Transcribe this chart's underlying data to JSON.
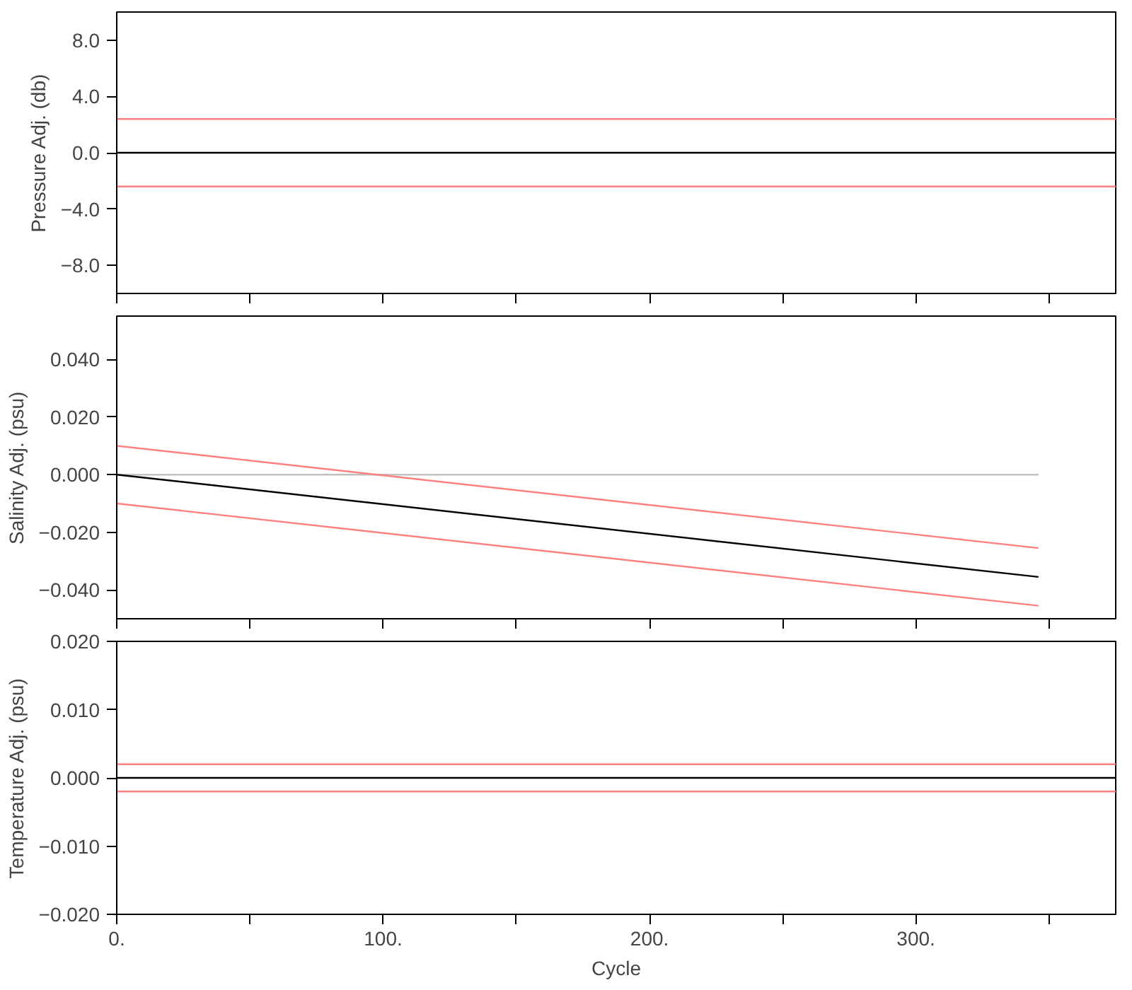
{
  "chart_data": [
    {
      "type": "line",
      "ylabel": "Pressure Adj. (db)",
      "xlim": [
        0,
        375
      ],
      "ylim": [
        -10,
        10
      ],
      "xticks": [
        {
          "value": 0,
          "label": null
        },
        {
          "value": 50,
          "label": null
        },
        {
          "value": 100,
          "label": null
        },
        {
          "value": 150,
          "label": null
        },
        {
          "value": 200,
          "label": null
        },
        {
          "value": 250,
          "label": null
        },
        {
          "value": 300,
          "label": null
        },
        {
          "value": 350,
          "label": null
        }
      ],
      "yticks": [
        {
          "value": -8,
          "label": "−8.0"
        },
        {
          "value": -4,
          "label": "−4.0"
        },
        {
          "value": 0,
          "label": "0.0"
        },
        {
          "value": 4,
          "label": "4.0"
        },
        {
          "value": 8,
          "label": "8.0"
        }
      ],
      "tick_labels": "y",
      "grid": false,
      "series": [
        {
          "color": "#ff8080",
          "x": [
            0,
            375
          ],
          "values": [
            2.4,
            2.4
          ]
        },
        {
          "color": "#ff8080",
          "x": [
            0,
            375
          ],
          "values": [
            -2.4,
            -2.4
          ]
        },
        {
          "color": "#000000",
          "x": [
            0,
            375
          ],
          "values": [
            0,
            0
          ]
        }
      ]
    },
    {
      "type": "line",
      "ylabel": "Salinity Adj. (psu)",
      "xlim": [
        0,
        375
      ],
      "ylim": [
        -0.05,
        0.055
      ],
      "xticks": [
        {
          "value": 0,
          "label": null
        },
        {
          "value": 50,
          "label": null
        },
        {
          "value": 100,
          "label": null
        },
        {
          "value": 150,
          "label": null
        },
        {
          "value": 200,
          "label": null
        },
        {
          "value": 250,
          "label": null
        },
        {
          "value": 300,
          "label": null
        },
        {
          "value": 350,
          "label": null
        }
      ],
      "yticks": [
        {
          "value": -0.04,
          "label": "−0.040"
        },
        {
          "value": -0.02,
          "label": "−0.020"
        },
        {
          "value": 0,
          "label": "0.000"
        },
        {
          "value": 0.02,
          "label": "0.020"
        },
        {
          "value": 0.04,
          "label": "0.040"
        }
      ],
      "tick_labels": "y",
      "grid": false,
      "series": [
        {
          "color": "#c0c0c0",
          "x": [
            0,
            346
          ],
          "values": [
            0,
            0
          ]
        },
        {
          "color": "#ff8080",
          "x": [
            0,
            346
          ],
          "values": [
            0.01,
            -0.0255
          ]
        },
        {
          "color": "#ff8080",
          "x": [
            0,
            346
          ],
          "values": [
            -0.01,
            -0.0455
          ]
        },
        {
          "color": "#000000",
          "x": [
            0,
            346
          ],
          "values": [
            0,
            -0.0355
          ]
        }
      ]
    },
    {
      "type": "line",
      "xlabel": "Cycle",
      "ylabel": "Temperature Adj. (psu)",
      "xlim": [
        0,
        375
      ],
      "ylim": [
        -0.02,
        0.02
      ],
      "xticks": [
        {
          "value": 0,
          "label": "0."
        },
        {
          "value": 50,
          "label": null
        },
        {
          "value": 100,
          "label": "100."
        },
        {
          "value": 150,
          "label": null
        },
        {
          "value": 200,
          "label": "200."
        },
        {
          "value": 250,
          "label": null
        },
        {
          "value": 300,
          "label": "300."
        },
        {
          "value": 350,
          "label": null
        }
      ],
      "yticks": [
        {
          "value": -0.02,
          "label": "−0.020"
        },
        {
          "value": -0.01,
          "label": "−0.010"
        },
        {
          "value": 0,
          "label": "0.000"
        },
        {
          "value": 0.01,
          "label": "0.010"
        },
        {
          "value": 0.02,
          "label": "0.020"
        }
      ],
      "grid": false,
      "series": [
        {
          "color": "#ff8080",
          "x": [
            0,
            375
          ],
          "values": [
            0.002,
            0.002
          ]
        },
        {
          "color": "#ff8080",
          "x": [
            0,
            375
          ],
          "values": [
            -0.002,
            -0.002
          ]
        },
        {
          "color": "#000000",
          "x": [
            0,
            375
          ],
          "values": [
            0,
            0
          ]
        }
      ]
    }
  ]
}
